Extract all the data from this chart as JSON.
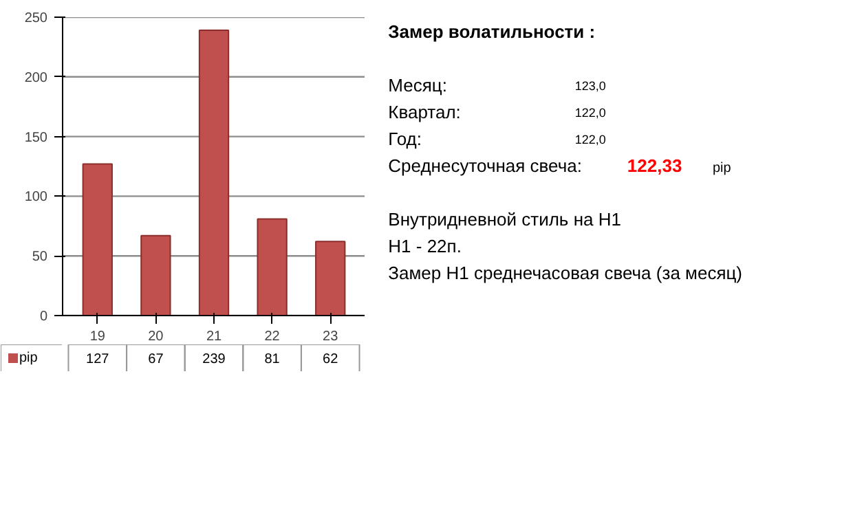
{
  "chart_data": [
    {
      "type": "bar",
      "categories": [
        "19",
        "20",
        "21",
        "22",
        "23"
      ],
      "series": [
        {
          "name": "pip",
          "color": "#c0504d",
          "values": [
            127,
            67,
            239,
            81,
            62
          ]
        }
      ],
      "ylim": [
        0,
        250
      ],
      "yticks": [
        0,
        50,
        100,
        150,
        200,
        250
      ],
      "grid": "y",
      "data_labels": true,
      "legend": "bottom"
    },
    {
      "type": "other",
      "annotations": [
        "Замер  волатильности  :",
        "Месяц:",
        "123,0",
        "Квартал:",
        "122,0",
        "Год:",
        "122,0",
        "Среднесуточная свеча:",
        "122,33",
        "pip",
        "Внутридневной стиль на H1",
        "H1 - 22п.",
        "Замер H1 среднечасовая свеча (за месяц)"
      ],
      "colors": [
        "#000000",
        "#000000",
        "#000000",
        "#000000",
        "#000000",
        "#000000",
        "#000000",
        "#000000",
        "#ff0000",
        "#000000",
        "#000000",
        "#000000",
        "#000000"
      ]
    }
  ]
}
